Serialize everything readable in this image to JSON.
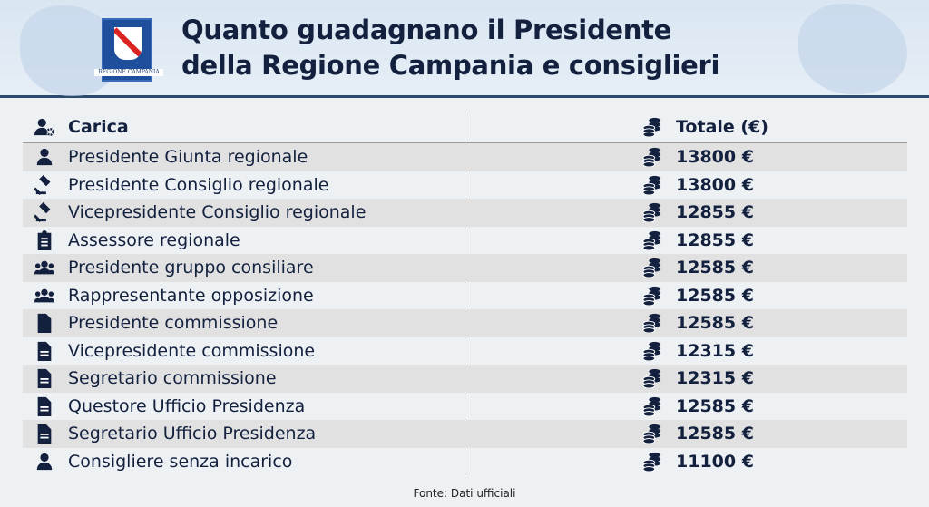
{
  "header": {
    "title_line1": "Quanto guadagnano il Presidente",
    "title_line2": "della Regione Campania e consiglieri",
    "logo_text": "REGIONE CAMPANIA"
  },
  "table": {
    "columns": [
      {
        "label": "Carica",
        "icon": "user-gear-icon"
      },
      {
        "label": "Totale (€)",
        "icon": "coins-icon"
      }
    ],
    "rows": [
      {
        "carica": "Presidente Giunta regionale",
        "icon": "user-icon",
        "totale": "13800 €"
      },
      {
        "carica": "Presidente Consiglio regionale",
        "icon": "gavel-icon",
        "totale": "13800 €"
      },
      {
        "carica": "Vicepresidente Consiglio regionale",
        "icon": "gavel-icon",
        "totale": "12855 €"
      },
      {
        "carica": "Assessore regionale",
        "icon": "clipboard-icon",
        "totale": "12855 €"
      },
      {
        "carica": "Presidente gruppo consiliare",
        "icon": "users-icon",
        "totale": "12585 €"
      },
      {
        "carica": "Rappresentante opposizione",
        "icon": "users-icon",
        "totale": "12585 €"
      },
      {
        "carica": "Presidente commissione",
        "icon": "file-icon",
        "totale": "12585 €"
      },
      {
        "carica": "Vicepresidente commissione",
        "icon": "file-text-icon",
        "totale": "12315 €"
      },
      {
        "carica": "Segretario commissione",
        "icon": "file-text-icon",
        "totale": "12315 €"
      },
      {
        "carica": "Questore Ufficio Presidenza",
        "icon": "file-text-icon",
        "totale": "12585 €"
      },
      {
        "carica": "Segretario Ufficio Presidenza",
        "icon": "file-text-icon",
        "totale": "12585 €"
      },
      {
        "carica": "Consigliere senza incarico",
        "icon": "user-icon",
        "totale": "11100 €"
      }
    ]
  },
  "footer": {
    "source": "Fonte: Dati ufficiali"
  },
  "colors": {
    "text": "#13213f",
    "row_shade": "#e1e1e1",
    "header_bg": "#d9e6f2"
  }
}
